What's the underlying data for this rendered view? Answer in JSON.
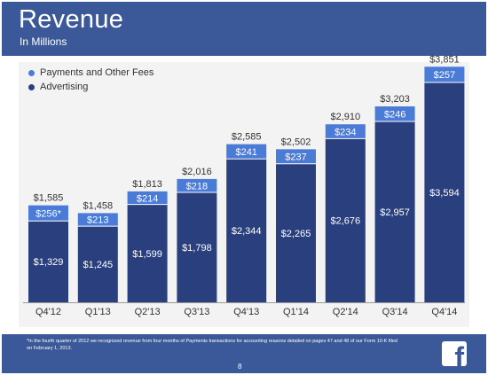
{
  "header": {
    "title": "Revenue",
    "subtitle": "In Millions"
  },
  "legend": [
    {
      "label": "Payments and Other Fees",
      "color": "#4a7bd6"
    },
    {
      "label": "Advertising",
      "color": "#2a3f7e"
    }
  ],
  "chart_data": {
    "type": "bar",
    "stacked": true,
    "categories": [
      "Q4'12",
      "Q1'13",
      "Q2'13",
      "Q3'13",
      "Q4'13",
      "Q1'14",
      "Q2'14",
      "Q3'14",
      "Q4'14"
    ],
    "series": [
      {
        "name": "Advertising",
        "values": [
          1329,
          1245,
          1599,
          1798,
          2344,
          2265,
          2676,
          2957,
          3594
        ],
        "labels": [
          "$1,329",
          "$1,245",
          "$1,599",
          "$1,798",
          "$2,344",
          "$2,265",
          "$2,676",
          "$2,957",
          "$3,594"
        ],
        "color": "#2a3f7e"
      },
      {
        "name": "Payments and Other Fees",
        "values": [
          256,
          213,
          214,
          218,
          241,
          237,
          234,
          246,
          257
        ],
        "labels": [
          "$256*",
          "$213",
          "$214",
          "$218",
          "$241",
          "$237",
          "$234",
          "$246",
          "$257"
        ],
        "color": "#4a7bd6"
      }
    ],
    "totals": [
      1585,
      1458,
      1813,
      2016,
      2585,
      2502,
      2910,
      3203,
      3851
    ],
    "total_labels": [
      "$1,585",
      "$1,458",
      "$1,813",
      "$2,016",
      "$2,585",
      "$2,502",
      "$2,910",
      "$3,203",
      "$3,851"
    ],
    "ylim": [
      0,
      4000
    ],
    "grid": false,
    "legend_position": "top-left"
  },
  "footer": {
    "footnote": "*In the fourth quarter of 2012 we recognized revenue from four months of Payments transactions for accounting reasons detailed on pages 47 and 48 of our Form 10-K filed on February 1, 2013.",
    "page_number": "8",
    "logo_letter": "f"
  }
}
